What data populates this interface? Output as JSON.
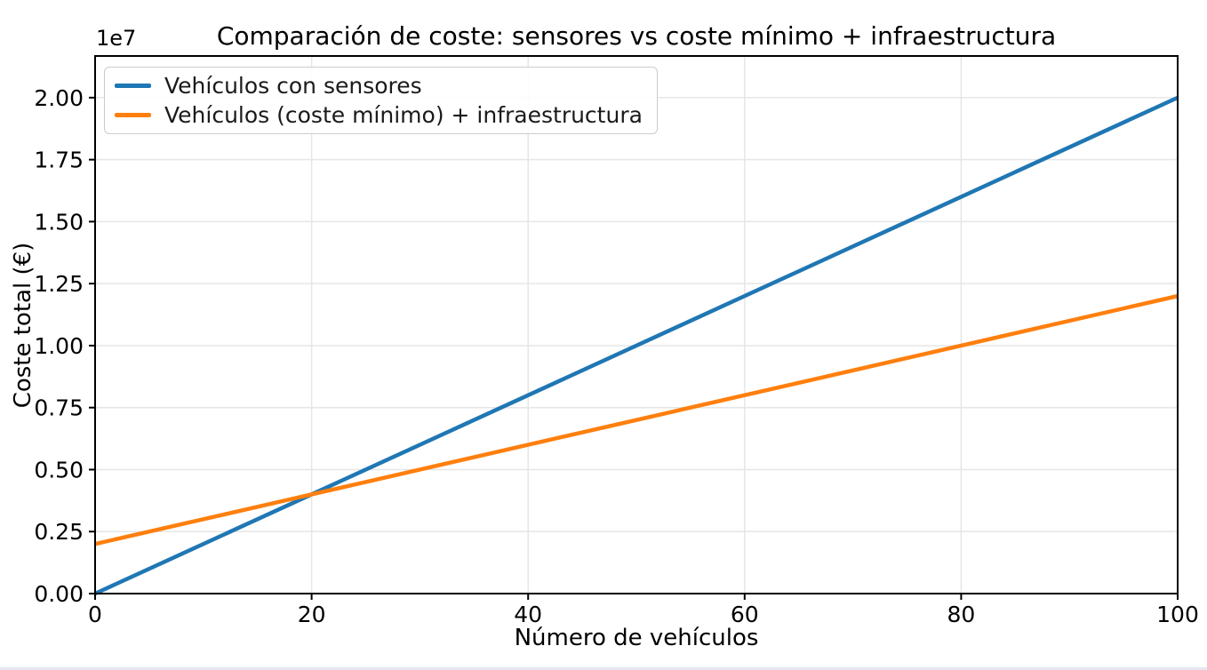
{
  "chart_data": {
    "type": "line",
    "title": "Comparación de coste: sensores vs coste mínimo + infraestructura",
    "xlabel": "Número de vehículos",
    "ylabel": "Coste total (€)",
    "offset_text": "1e7",
    "xlim": [
      0,
      100
    ],
    "ylim": [
      0,
      21680000
    ],
    "x_tick_values": [
      0,
      20,
      40,
      60,
      80,
      100
    ],
    "x_tick_labels": [
      "0",
      "20",
      "40",
      "60",
      "80",
      "100"
    ],
    "y_tick_values": [
      0,
      2500000,
      5000000,
      7500000,
      10000000,
      12500000,
      15000000,
      17500000,
      20000000
    ],
    "y_tick_labels": [
      "0.00",
      "0.25",
      "0.50",
      "0.75",
      "1.00",
      "1.25",
      "1.50",
      "1.75",
      "2.00"
    ],
    "grid": true,
    "legend_position": "upper left",
    "series": [
      {
        "name": "Vehículos con sensores",
        "color": "#1f77b4",
        "x": [
          0,
          100
        ],
        "y": [
          0,
          20000000
        ],
        "slope_per_vehicle": 200000,
        "fixed_cost": 0
      },
      {
        "name": "Vehículos (coste mínimo) + infraestructura",
        "color": "#ff7f0e",
        "x": [
          0,
          100
        ],
        "y": [
          2000000,
          12000000
        ],
        "slope_per_vehicle": 100000,
        "fixed_cost": 2000000
      }
    ]
  },
  "legend": {
    "entries": [
      {
        "label": "Vehículos con sensores",
        "color": "#1f77b4"
      },
      {
        "label": "Vehículos (coste mínimo) + infraestructura",
        "color": "#ff7f0e"
      }
    ]
  },
  "colors": {
    "background": "#ffffff",
    "spine": "#000000",
    "grid": "#e6e6e6",
    "tick_text": "#000000",
    "legend_border": "#cccccc",
    "bottom_strip": "#e3e9ee"
  }
}
